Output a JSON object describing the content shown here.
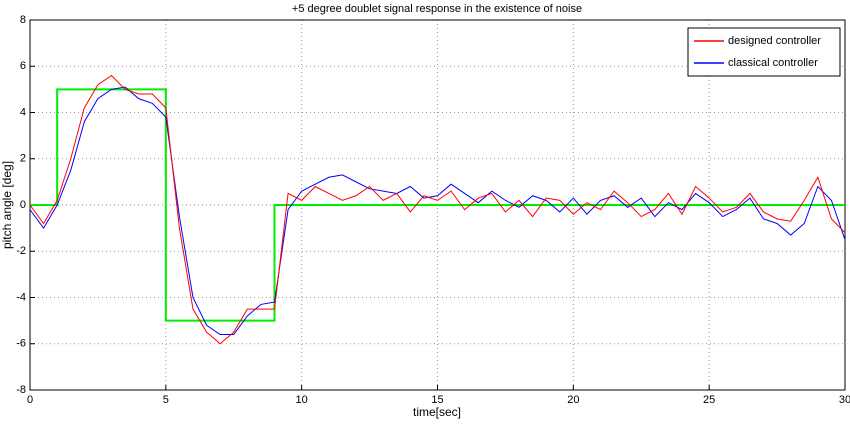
{
  "chart_data": {
    "type": "line",
    "title": "+5 degree doublet signal response in the existence of noise",
    "x_label": "time[sec]",
    "y_label": "pitch angle [deg]",
    "x": [
      0,
      0.5,
      1,
      1.5,
      2,
      2.5,
      3,
      3.5,
      4,
      4.5,
      5,
      5.5,
      6,
      6.5,
      7,
      7.5,
      8,
      8.5,
      9,
      9.5,
      10,
      10.5,
      11,
      11.5,
      12,
      12.5,
      13,
      13.5,
      14,
      14.5,
      15,
      15.5,
      16,
      16.5,
      17,
      17.5,
      18,
      18.5,
      19,
      19.5,
      20,
      20.5,
      21,
      21.5,
      22,
      22.5,
      23,
      23.5,
      24,
      24.5,
      25,
      25.5,
      26,
      26.5,
      27,
      27.5,
      28,
      28.5,
      29,
      29.5,
      30
    ],
    "series": [
      {
        "name": "designed controller",
        "color": "#ff0000",
        "values": [
          0,
          -0.8,
          0.2,
          2,
          4.2,
          5.2,
          5.6,
          5,
          4.8,
          4.8,
          4.2,
          -1,
          -4.5,
          -5.5,
          -6,
          -5.5,
          -4.5,
          -4.5,
          -4.5,
          0.5,
          0.2,
          0.8,
          0.5,
          0.2,
          0.4,
          0.8,
          0.2,
          0.5,
          -0.3,
          0.4,
          0.2,
          0.6,
          -0.2,
          0.3,
          0.5,
          -0.3,
          0.2,
          -0.5,
          0.3,
          0.2,
          -0.4,
          0.1,
          -0.2,
          0.6,
          0.1,
          -0.5,
          -0.2,
          0.5,
          -0.4,
          0.8,
          0.3,
          -0.3,
          -0.1,
          0.5,
          -0.3,
          -0.6,
          -0.7,
          0.2,
          1.2,
          -0.6,
          -1.2
        ]
      },
      {
        "name": "classical controller",
        "color": "#0000ff",
        "values": [
          -0.2,
          -1,
          0,
          1.5,
          3.6,
          4.6,
          5,
          5.1,
          4.6,
          4.4,
          3.8,
          -0.5,
          -4,
          -5.2,
          -5.6,
          -5.6,
          -4.8,
          -4.3,
          -4.2,
          -0.2,
          0.6,
          0.9,
          1.2,
          1.3,
          1,
          0.7,
          0.6,
          0.5,
          0.8,
          0.3,
          0.4,
          0.9,
          0.5,
          0.1,
          0.6,
          0.2,
          -0.1,
          0.4,
          0.2,
          -0.3,
          0.3,
          -0.4,
          0.2,
          0.4,
          -0.1,
          0.3,
          -0.5,
          0.1,
          -0.2,
          0.5,
          0.1,
          -0.5,
          -0.2,
          0.3,
          -0.6,
          -0.8,
          -1.3,
          -0.8,
          0.8,
          0.2,
          -1.5
        ]
      },
      {
        "color": "#00ee00",
        "x": [
          0,
          1,
          1,
          5,
          5,
          9,
          9,
          30
        ],
        "values": [
          0,
          0,
          5,
          5,
          -5,
          -5,
          0,
          0
        ]
      }
    ],
    "xlim": [
      0,
      30
    ],
    "xticks": [
      0,
      5,
      10,
      15,
      20,
      25,
      30
    ],
    "ylim": [
      -8,
      8
    ],
    "yticks": [
      -8,
      -6,
      -4,
      -2,
      0,
      2,
      4,
      6,
      8
    ],
    "grid": true,
    "legend": "top-right"
  }
}
